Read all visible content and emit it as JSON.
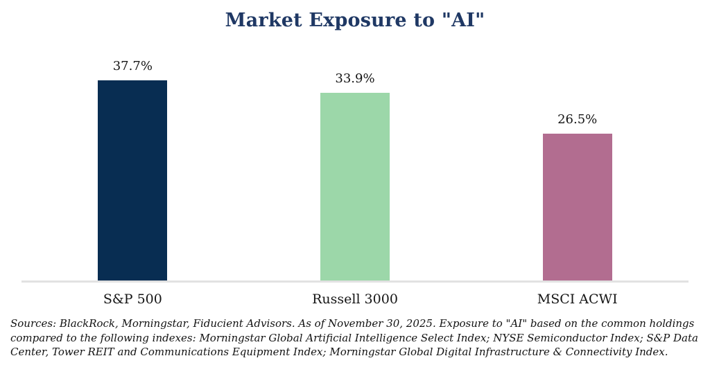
{
  "title": "Market Exposure to \"AI\"",
  "footer": "Sources: BlackRock, Morningstar, Fiducient Advisors. As of November 30, 2025. Exposure to \"AI\" based on the common holdings compared to the following indexes: Morningstar Global Artificial Intelligence Select Index; NYSE Semiconductor Index; S&P Data Center, Tower REIT and Communications Equipment Index; Morningstar Global Digital Infrastructure & Connectivity Index.",
  "colors": {
    "title_text": "#1f3864",
    "axis_line": "#e2e2e2",
    "label_text": "#141414"
  },
  "chart_data": {
    "type": "bar",
    "title": "Market Exposure to \"AI\"",
    "categories": [
      "S&P 500",
      "Russell 3000",
      "MSCI ACWI"
    ],
    "values": [
      37.7,
      33.9,
      26.5
    ],
    "value_labels": [
      "37.7%",
      "33.9%",
      "26.5%"
    ],
    "bar_colors": [
      "#082d52",
      "#9cd7a9",
      "#b26d90"
    ],
    "xlabel": "",
    "ylabel": "",
    "ylim": [
      0,
      40
    ],
    "grid": false,
    "legend": false,
    "value_labels_position": "above-bars",
    "baseline_axis_only": true
  }
}
